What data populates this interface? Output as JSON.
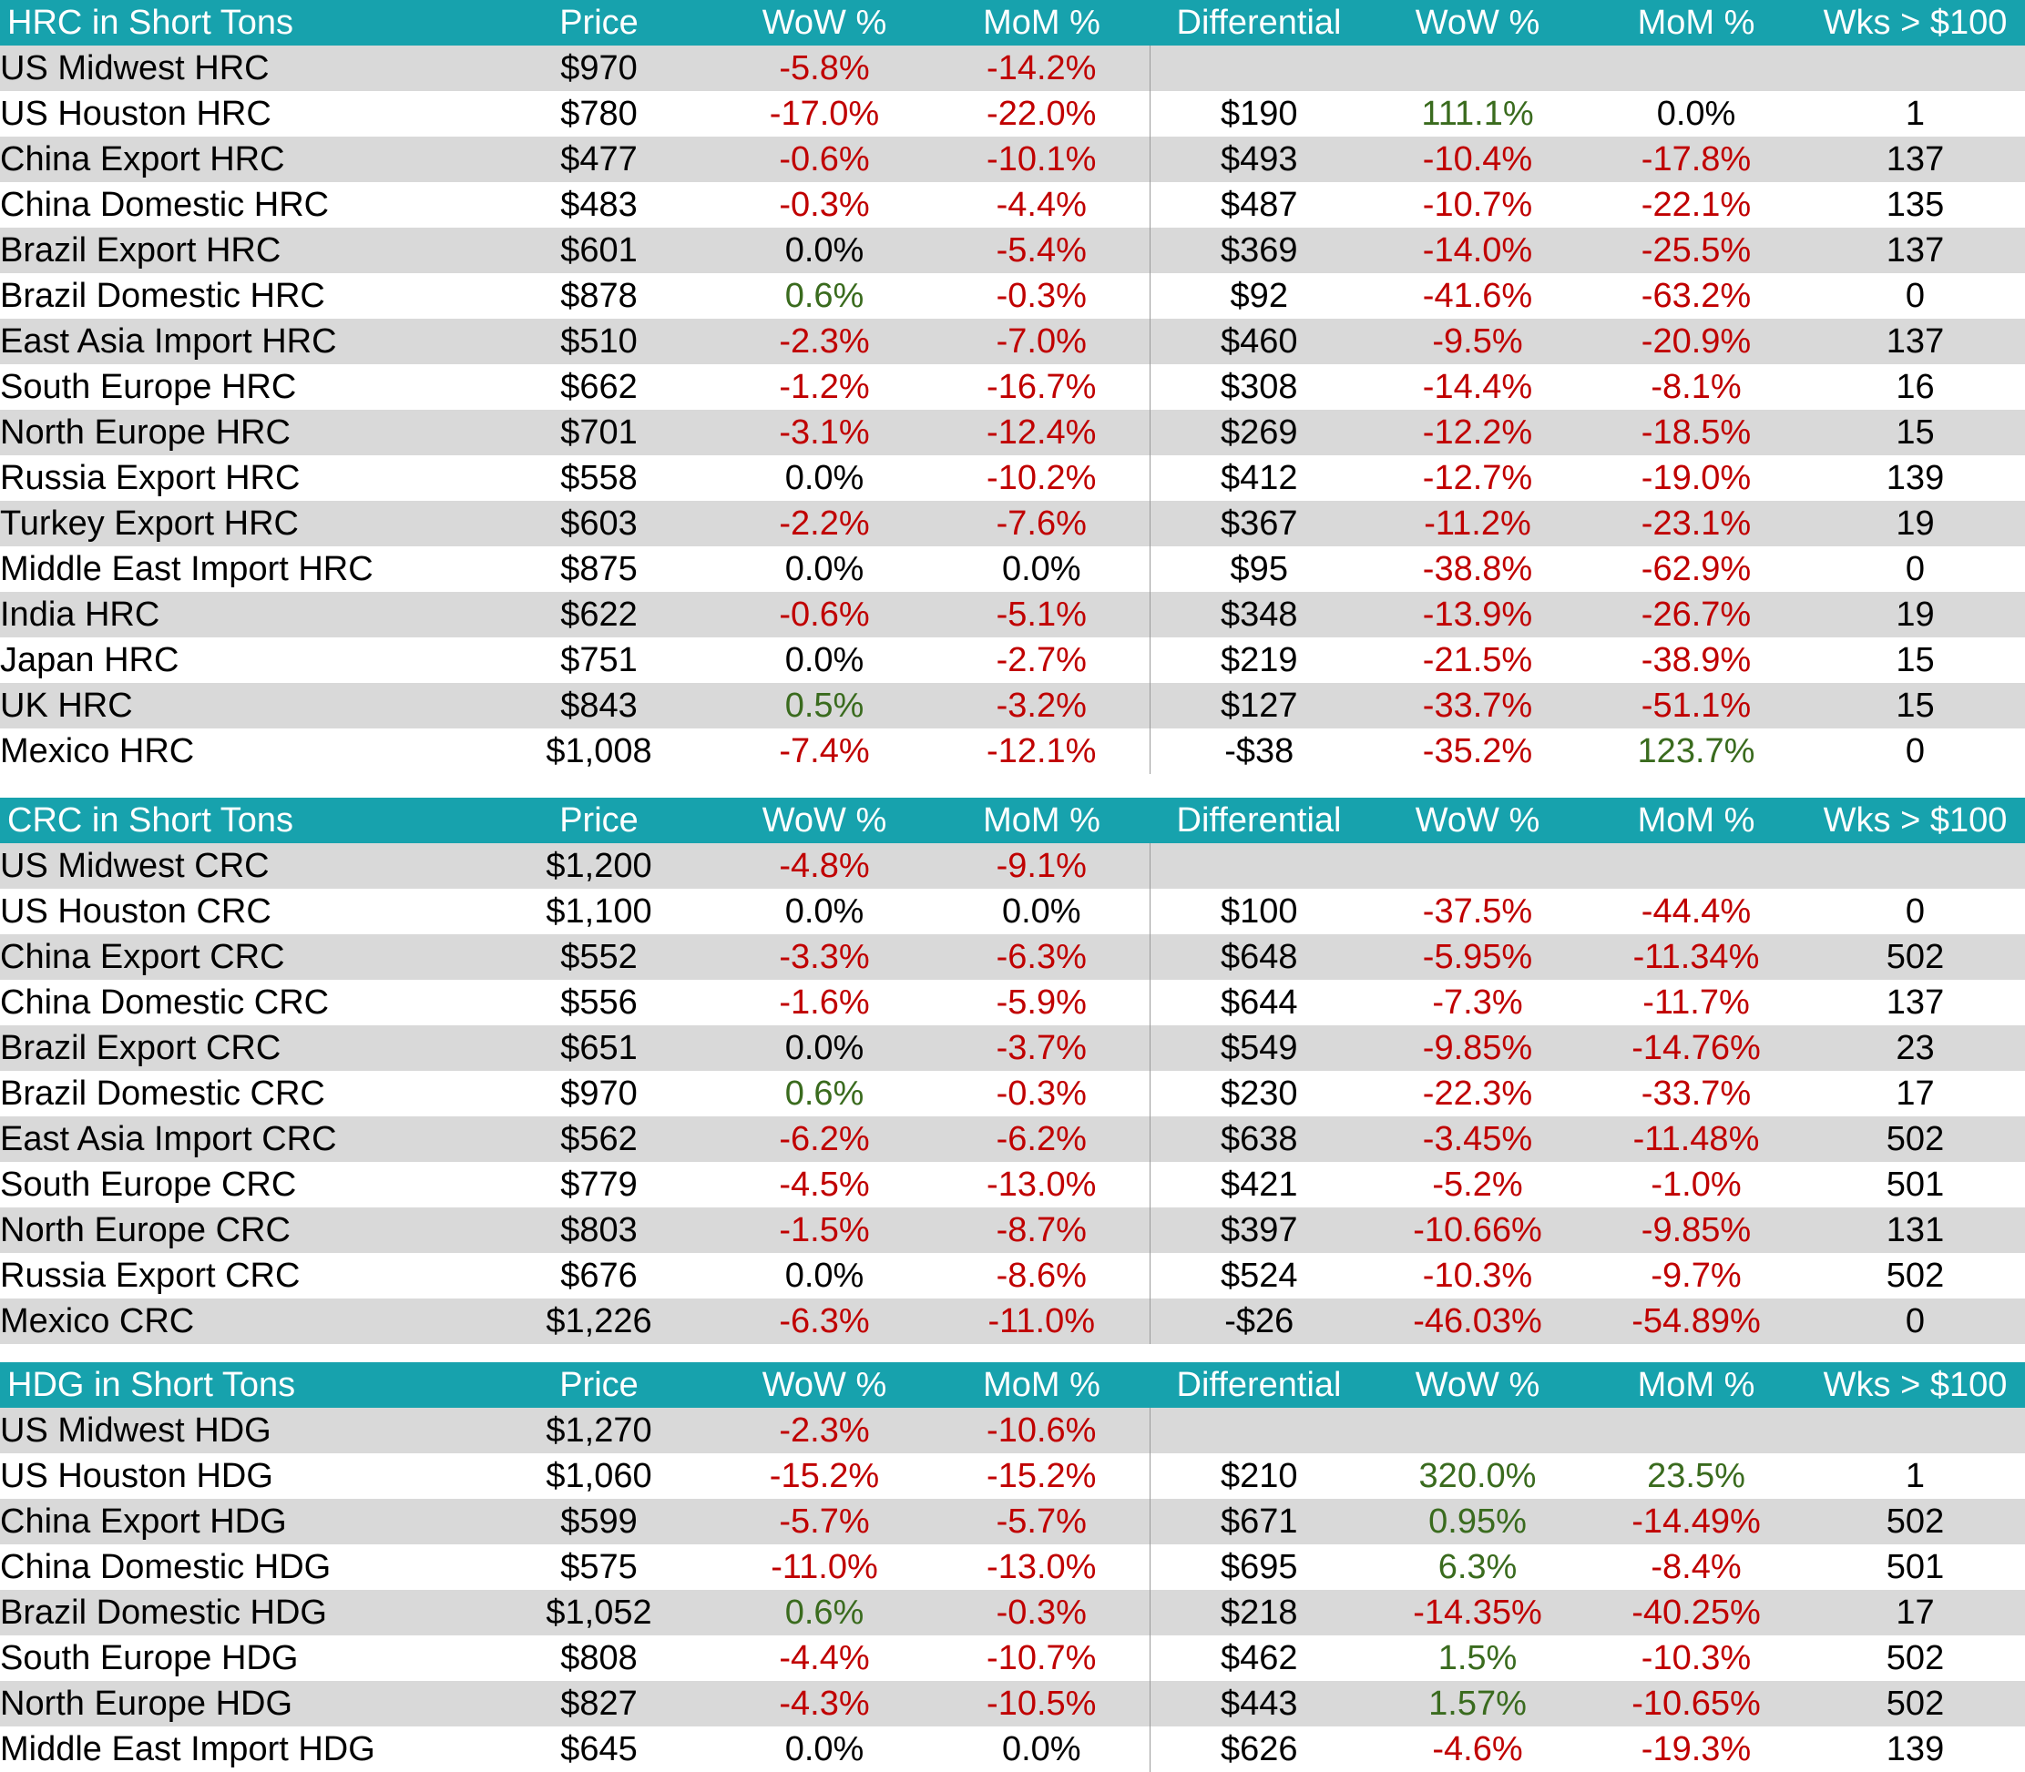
{
  "colors": {
    "header_bg": "#17a2ad",
    "header_text": "#ffffff",
    "row_shade": "#d9d9d9",
    "negative": "#c00000",
    "positive": "#3a6b1e"
  },
  "sections": [
    {
      "title": "HRC in Short Tons",
      "headers": [
        "Price",
        "WoW %",
        "MoM %",
        "Differential",
        "WoW %",
        "MoM %",
        "Wks > $100"
      ],
      "rows": [
        {
          "name": "US Midwest HRC",
          "price": "$970",
          "wow": "-5.8%",
          "mom": "-14.2%",
          "diff": "",
          "dwow": "",
          "dmom": "",
          "wks": ""
        },
        {
          "name": "US Houston HRC",
          "price": "$780",
          "wow": "-17.0%",
          "mom": "-22.0%",
          "diff": "$190",
          "dwow": "111.1%",
          "dmom": "0.0%",
          "wks": "1"
        },
        {
          "name": "China Export HRC",
          "price": "$477",
          "wow": "-0.6%",
          "mom": "-10.1%",
          "diff": "$493",
          "dwow": "-10.4%",
          "dmom": "-17.8%",
          "wks": "137"
        },
        {
          "name": "China Domestic HRC",
          "price": "$483",
          "wow": "-0.3%",
          "mom": "-4.4%",
          "diff": "$487",
          "dwow": "-10.7%",
          "dmom": "-22.1%",
          "wks": "135"
        },
        {
          "name": "Brazil Export HRC",
          "price": "$601",
          "wow": "0.0%",
          "mom": "-5.4%",
          "diff": "$369",
          "dwow": "-14.0%",
          "dmom": "-25.5%",
          "wks": "137"
        },
        {
          "name": "Brazil Domestic HRC",
          "price": "$878",
          "wow": "0.6%",
          "mom": "-0.3%",
          "diff": "$92",
          "dwow": "-41.6%",
          "dmom": "-63.2%",
          "wks": "0"
        },
        {
          "name": "East Asia Import HRC",
          "price": "$510",
          "wow": "-2.3%",
          "mom": "-7.0%",
          "diff": "$460",
          "dwow": "-9.5%",
          "dmom": "-20.9%",
          "wks": "137"
        },
        {
          "name": "South Europe HRC",
          "price": "$662",
          "wow": "-1.2%",
          "mom": "-16.7%",
          "diff": "$308",
          "dwow": "-14.4%",
          "dmom": "-8.1%",
          "wks": "16"
        },
        {
          "name": "North Europe HRC",
          "price": "$701",
          "wow": "-3.1%",
          "mom": "-12.4%",
          "diff": "$269",
          "dwow": "-12.2%",
          "dmom": "-18.5%",
          "wks": "15"
        },
        {
          "name": "Russia Export HRC",
          "price": "$558",
          "wow": "0.0%",
          "mom": "-10.2%",
          "diff": "$412",
          "dwow": "-12.7%",
          "dmom": "-19.0%",
          "wks": "139"
        },
        {
          "name": "Turkey Export HRC",
          "price": "$603",
          "wow": "-2.2%",
          "mom": "-7.6%",
          "diff": "$367",
          "dwow": "-11.2%",
          "dmom": "-23.1%",
          "wks": "19"
        },
        {
          "name": "Middle East Import HRC",
          "price": "$875",
          "wow": "0.0%",
          "mom": "0.0%",
          "diff": "$95",
          "dwow": "-38.8%",
          "dmom": "-62.9%",
          "wks": "0"
        },
        {
          "name": "India HRC",
          "price": "$622",
          "wow": "-0.6%",
          "mom": "-5.1%",
          "diff": "$348",
          "dwow": "-13.9%",
          "dmom": "-26.7%",
          "wks": "19"
        },
        {
          "name": "Japan HRC",
          "price": "$751",
          "wow": "0.0%",
          "mom": "-2.7%",
          "diff": "$219",
          "dwow": "-21.5%",
          "dmom": "-38.9%",
          "wks": "15"
        },
        {
          "name": "UK HRC",
          "price": "$843",
          "wow": "0.5%",
          "mom": "-3.2%",
          "diff": "$127",
          "dwow": "-33.7%",
          "dmom": "-51.1%",
          "wks": "15"
        },
        {
          "name": "Mexico HRC",
          "price": "$1,008",
          "wow": "-7.4%",
          "mom": "-12.1%",
          "diff": "-$38",
          "dwow": "-35.2%",
          "dmom": "123.7%",
          "wks": "0"
        }
      ]
    },
    {
      "title": "CRC in Short Tons",
      "headers": [
        "Price",
        "WoW %",
        "MoM %",
        "Differential",
        "WoW %",
        "MoM %",
        "Wks > $100"
      ],
      "rows": [
        {
          "name": "US Midwest CRC",
          "price": "$1,200",
          "wow": "-4.8%",
          "mom": "-9.1%",
          "diff": "",
          "dwow": "",
          "dmom": "",
          "wks": ""
        },
        {
          "name": "US Houston CRC",
          "price": "$1,100",
          "wow": "0.0%",
          "mom": "0.0%",
          "diff": "$100",
          "dwow": "-37.5%",
          "dmom": "-44.4%",
          "wks": "0"
        },
        {
          "name": "China Export CRC",
          "price": "$552",
          "wow": "-3.3%",
          "mom": "-6.3%",
          "diff": "$648",
          "dwow": "-5.95%",
          "dmom": "-11.34%",
          "wks": "502"
        },
        {
          "name": "China Domestic CRC",
          "price": "$556",
          "wow": "-1.6%",
          "mom": "-5.9%",
          "diff": "$644",
          "dwow": "-7.3%",
          "dmom": "-11.7%",
          "wks": "137"
        },
        {
          "name": "Brazil Export CRC",
          "price": "$651",
          "wow": "0.0%",
          "mom": "-3.7%",
          "diff": "$549",
          "dwow": "-9.85%",
          "dmom": "-14.76%",
          "wks": "23"
        },
        {
          "name": "Brazil Domestic CRC",
          "price": "$970",
          "wow": "0.6%",
          "mom": "-0.3%",
          "diff": "$230",
          "dwow": "-22.3%",
          "dmom": "-33.7%",
          "wks": "17"
        },
        {
          "name": "East Asia Import CRC",
          "price": "$562",
          "wow": "-6.2%",
          "mom": "-6.2%",
          "diff": "$638",
          "dwow": "-3.45%",
          "dmom": "-11.48%",
          "wks": "502"
        },
        {
          "name": "South Europe CRC",
          "price": "$779",
          "wow": "-4.5%",
          "mom": "-13.0%",
          "diff": "$421",
          "dwow": "-5.2%",
          "dmom": "-1.0%",
          "wks": "501"
        },
        {
          "name": "North Europe CRC",
          "price": "$803",
          "wow": "-1.5%",
          "mom": "-8.7%",
          "diff": "$397",
          "dwow": "-10.66%",
          "dmom": "-9.85%",
          "wks": "131"
        },
        {
          "name": "Russia Export CRC",
          "price": "$676",
          "wow": "0.0%",
          "mom": "-8.6%",
          "diff": "$524",
          "dwow": "-10.3%",
          "dmom": "-9.7%",
          "wks": "502"
        },
        {
          "name": "Mexico CRC",
          "price": "$1,226",
          "wow": "-6.3%",
          "mom": "-11.0%",
          "diff": "-$26",
          "dwow": "-46.03%",
          "dmom": "-54.89%",
          "wks": "0"
        }
      ]
    },
    {
      "title": "HDG in Short Tons",
      "headers": [
        "Price",
        "WoW %",
        "MoM %",
        "Differential",
        "WoW %",
        "MoM %",
        "Wks > $100"
      ],
      "rows": [
        {
          "name": "US Midwest HDG",
          "price": "$1,270",
          "wow": "-2.3%",
          "mom": "-10.6%",
          "diff": "",
          "dwow": "",
          "dmom": "",
          "wks": ""
        },
        {
          "name": "US Houston HDG",
          "price": "$1,060",
          "wow": "-15.2%",
          "mom": "-15.2%",
          "diff": "$210",
          "dwow": "320.0%",
          "dmom": "23.5%",
          "wks": "1"
        },
        {
          "name": "China Export HDG",
          "price": "$599",
          "wow": "-5.7%",
          "mom": "-5.7%",
          "diff": "$671",
          "dwow": "0.95%",
          "dmom": "-14.49%",
          "wks": "502"
        },
        {
          "name": "China Domestic HDG",
          "price": "$575",
          "wow": "-11.0%",
          "mom": "-13.0%",
          "diff": "$695",
          "dwow": "6.3%",
          "dmom": "-8.4%",
          "wks": "501"
        },
        {
          "name": "Brazil Domestic HDG",
          "price": "$1,052",
          "wow": "0.6%",
          "mom": "-0.3%",
          "diff": "$218",
          "dwow": "-14.35%",
          "dmom": "-40.25%",
          "wks": "17"
        },
        {
          "name": "South Europe HDG",
          "price": "$808",
          "wow": "-4.4%",
          "mom": "-10.7%",
          "diff": "$462",
          "dwow": "1.5%",
          "dmom": "-10.3%",
          "wks": "502"
        },
        {
          "name": "North Europe HDG",
          "price": "$827",
          "wow": "-4.3%",
          "mom": "-10.5%",
          "diff": "$443",
          "dwow": "1.57%",
          "dmom": "-10.65%",
          "wks": "502"
        },
        {
          "name": "Middle East Import HDG",
          "price": "$645",
          "wow": "0.0%",
          "mom": "0.0%",
          "diff": "$626",
          "dwow": "-4.6%",
          "dmom": "-19.3%",
          "wks": "139"
        }
      ]
    }
  ]
}
